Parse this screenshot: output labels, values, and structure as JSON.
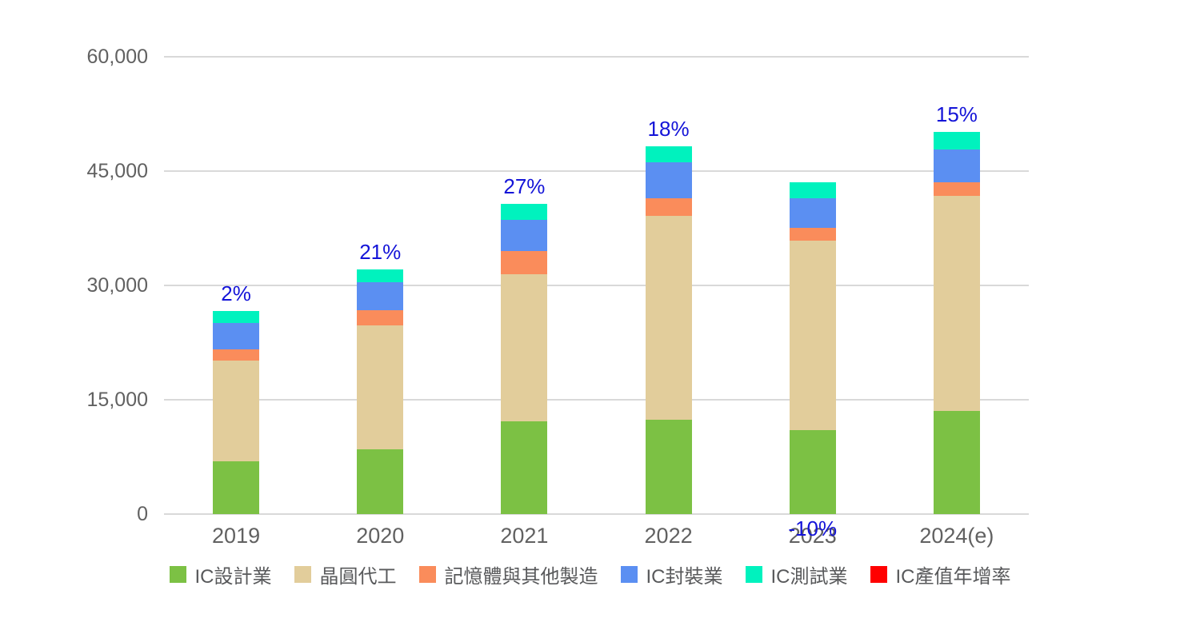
{
  "chart_data": {
    "type": "bar",
    "stacked": true,
    "title": "",
    "xlabel": "",
    "ylabel": "",
    "categories": [
      "2019",
      "2020",
      "2021",
      "2022",
      "2023",
      "2024(e)"
    ],
    "series": [
      {
        "name": "IC設計業",
        "color": "#7cc144",
        "values": [
          6900,
          8530,
          12150,
          12380,
          10980,
          13530
        ]
      },
      {
        "name": "晶圓代工",
        "color": "#e2cd9b",
        "values": [
          13250,
          16200,
          19350,
          26750,
          24900,
          28220
        ]
      },
      {
        "name": "記憶體與其他製造",
        "color": "#fa8c5b",
        "values": [
          1500,
          2000,
          2980,
          2340,
          1680,
          1750
        ]
      },
      {
        "name": "IC封裝業",
        "color": "#5b8ff2",
        "values": [
          3400,
          3670,
          4120,
          4660,
          3920,
          4370
        ]
      },
      {
        "name": "IC測試業",
        "color": "#00f2be",
        "values": [
          1600,
          1740,
          2100,
          2160,
          2030,
          2270
        ]
      }
    ],
    "growth_series": {
      "name": "IC產值年增率",
      "legend_color": "#ff0000",
      "label_color": "#1414d8",
      "values_pct": [
        2,
        21,
        27,
        18,
        -10,
        15
      ],
      "labels": [
        "2%",
        "21%",
        "27%",
        "18%",
        "-10%",
        "15%"
      ]
    },
    "ylim": [
      0,
      60000
    ],
    "yticks": [
      {
        "value": 0,
        "label": "0"
      },
      {
        "value": 15000,
        "label": "15,000"
      },
      {
        "value": 30000,
        "label": "30,000"
      },
      {
        "value": 45000,
        "label": "45,000"
      },
      {
        "value": 60000,
        "label": "60,000"
      }
    ],
    "grid": true,
    "legend_position": "bottom"
  },
  "colors": {
    "background": "#ffffff",
    "gridline": "#d9d9d9",
    "axis_text": "#616161",
    "legend_text": "#58595b"
  }
}
